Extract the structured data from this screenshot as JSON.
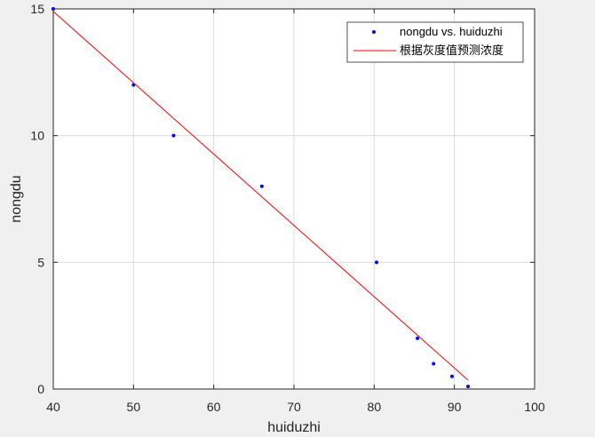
{
  "chart_data": {
    "type": "scatter",
    "xlabel": "huiduzhi",
    "ylabel": "nongdu",
    "xlim": [
      40,
      100
    ],
    "ylim": [
      0,
      15
    ],
    "xticks": [
      40,
      50,
      60,
      70,
      80,
      90,
      100
    ],
    "yticks": [
      0,
      5,
      10,
      15
    ],
    "xtick_labels": [
      "40",
      "50",
      "60",
      "70",
      "80",
      "90",
      "100"
    ],
    "ytick_labels": [
      "0",
      "5",
      "10",
      "15"
    ],
    "grid": true,
    "legend_position": "top-right",
    "series": [
      {
        "name": "nongdu vs. huiduzhi",
        "kind": "points",
        "color": "#0000ff",
        "x": [
          40,
          50,
          55,
          66,
          80.3,
          85.4,
          87.4,
          89.7,
          91.7
        ],
        "y": [
          15,
          12,
          10,
          8,
          5,
          2,
          1,
          0.5,
          0.1
        ]
      },
      {
        "name": "根据灰度值预测浓度",
        "kind": "line",
        "color": "#ff0000",
        "x": [
          40,
          91.7
        ],
        "y": [
          14.9,
          0.35
        ]
      }
    ]
  }
}
